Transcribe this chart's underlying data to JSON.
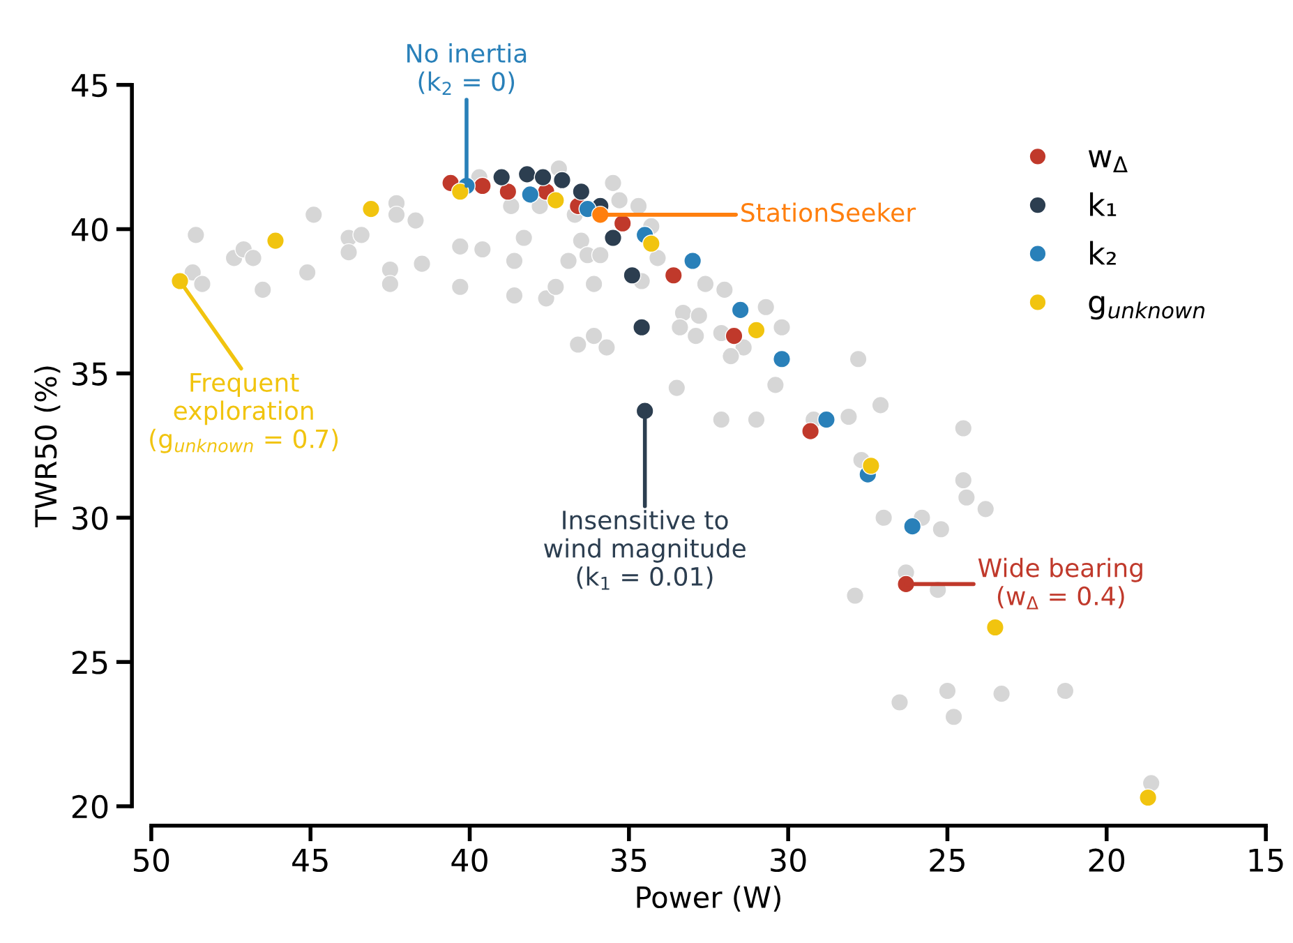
{
  "chart_data": {
    "type": "scatter",
    "xlabel": "Power (W)",
    "ylabel": "TWR50 (%)",
    "xlim": [
      50,
      15
    ],
    "xticks": [
      50,
      45,
      40,
      35,
      30,
      25,
      20,
      15
    ],
    "ylim": [
      20,
      45
    ],
    "yticks": [
      20,
      25,
      30,
      35,
      40,
      45
    ],
    "grid": false,
    "legend": "top right",
    "marker": "circle",
    "series": [
      {
        "color": "#d6d6d6",
        "x": [
          48.6,
          48.7,
          48.4,
          47.4,
          47.1,
          46.8,
          46.5,
          45.1,
          44.9,
          43.8,
          43.8,
          43.4,
          42.3,
          42.3,
          41.7,
          42.5,
          42.5,
          41.5,
          40.3,
          39.6,
          40.3,
          39.7,
          38.7,
          38.6,
          38.6,
          38.3,
          37.2,
          37.8,
          35.5,
          35.3,
          34.7,
          36.7,
          36.9,
          36.5,
          36.3,
          35.9,
          37.6,
          37.3,
          36.1,
          34.6,
          34.3,
          34.1,
          32.6,
          32.0,
          33.3,
          32.8,
          33.4,
          32.9,
          32.1,
          31.4,
          31.8,
          30.7,
          30.2,
          36.1,
          36.6,
          35.7,
          33.5,
          32.1,
          31.0,
          30.4,
          29.2,
          28.1,
          27.1,
          27.8,
          24.5,
          27.7,
          24.5,
          24.4,
          23.8,
          27.0,
          25.8,
          25.2,
          26.3,
          27.9,
          25.3,
          26.5,
          25.0,
          24.8,
          23.3,
          21.3,
          18.6
        ],
        "values": [
          39.8,
          38.5,
          38.1,
          39.0,
          39.3,
          39.0,
          37.9,
          38.5,
          40.5,
          39.7,
          39.2,
          39.8,
          40.9,
          40.5,
          40.3,
          38.6,
          38.1,
          38.8,
          39.4,
          39.3,
          38.0,
          41.8,
          40.8,
          38.9,
          37.7,
          39.7,
          42.1,
          40.8,
          41.6,
          41.0,
          40.8,
          40.5,
          38.9,
          39.6,
          39.1,
          39.1,
          37.6,
          38.0,
          38.1,
          38.2,
          40.1,
          39.0,
          38.1,
          37.9,
          37.1,
          37.0,
          36.6,
          36.3,
          36.4,
          35.9,
          35.6,
          37.3,
          36.6,
          36.3,
          36.0,
          35.9,
          34.5,
          33.4,
          33.4,
          34.6,
          33.4,
          33.5,
          33.9,
          35.5,
          33.1,
          32.0,
          31.3,
          30.7,
          30.3,
          30.0,
          30.0,
          29.6,
          28.1,
          27.3,
          27.5,
          23.6,
          24.0,
          23.1,
          23.9,
          24.0,
          20.8
        ]
      },
      {
        "name": "w$_{Δ}$",
        "color": "#c0392b",
        "x": [
          40.6,
          39.6,
          38.8,
          37.6,
          36.6,
          35.2,
          33.6,
          31.7,
          29.3,
          26.3
        ],
        "values": [
          41.6,
          41.5,
          41.3,
          41.3,
          40.8,
          40.2,
          38.4,
          36.3,
          33.0,
          27.7
        ]
      },
      {
        "name": "k₁",
        "color": "#2c3e50",
        "x": [
          39.0,
          38.2,
          37.7,
          37.1,
          36.5,
          35.9,
          35.5,
          34.9,
          34.6,
          34.5
        ],
        "values": [
          41.8,
          41.9,
          41.8,
          41.7,
          41.3,
          40.8,
          39.7,
          38.4,
          36.6,
          33.7
        ]
      },
      {
        "name": "k₂",
        "color": "#2980b9",
        "x": [
          40.1,
          38.1,
          36.3,
          34.5,
          33.0,
          31.5,
          30.2,
          28.8,
          27.5,
          26.1
        ],
        "values": [
          41.5,
          41.2,
          40.7,
          39.8,
          38.9,
          37.2,
          35.5,
          33.4,
          31.5,
          29.7
        ]
      },
      {
        "name": "g$_{unknown}$",
        "color": "#f1c40f",
        "x": [
          49.1,
          46.1,
          43.1,
          40.3,
          37.3,
          34.3,
          31.0,
          27.4,
          23.5,
          18.7
        ],
        "values": [
          38.2,
          39.6,
          40.7,
          41.3,
          41.0,
          39.5,
          36.5,
          31.8,
          26.2,
          20.3
        ]
      },
      {
        "color": "#ff7f0e",
        "x": [
          35.9
        ],
        "values": [
          40.5
        ]
      }
    ],
    "annotations": [
      {
        "text": "No inertia\n(k$_{2}$ = 0)",
        "x": 40.1,
        "y": 41.5
      },
      {
        "text": "StationSeeker",
        "x": 35.9,
        "y": 40.5
      },
      {
        "text": "Frequent\nexploration\n(g$_{unknown}$ = 0.7)",
        "x": 49.1,
        "y": 38.2
      },
      {
        "text": "Insensitive to\nwind magnitude\n(k$_{1}$ = 0.01)",
        "x": 34.5,
        "y": 33.7
      },
      {
        "text": "Wide bearing\n(w$_{Δ}$ = 0.4)",
        "x": 26.3,
        "y": 27.7
      }
    ]
  }
}
